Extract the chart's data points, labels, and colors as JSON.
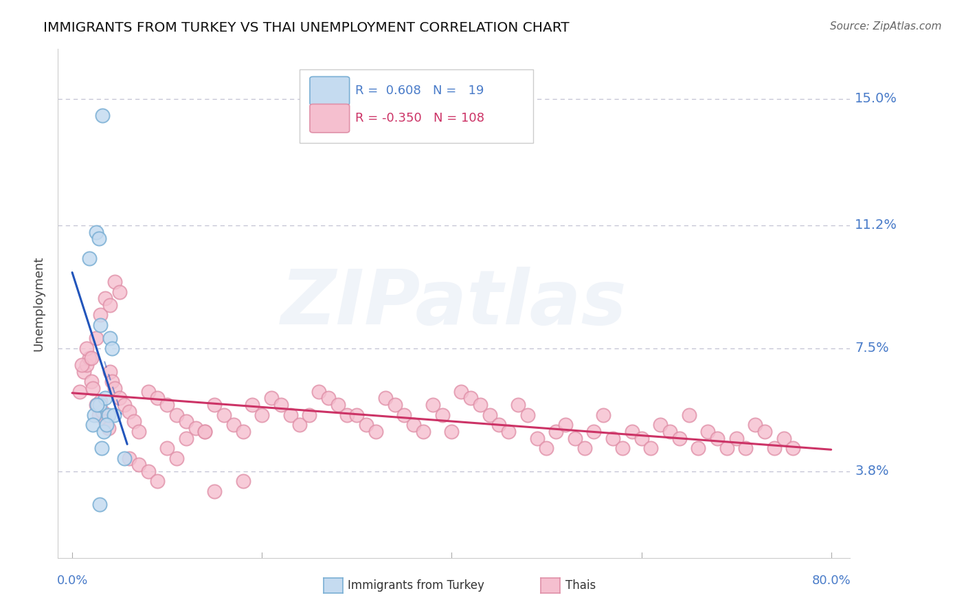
{
  "title": "IMMIGRANTS FROM TURKEY VS THAI UNEMPLOYMENT CORRELATION CHART",
  "source": "Source: ZipAtlas.com",
  "ylabel": "Unemployment",
  "yticks": [
    3.8,
    7.5,
    11.2,
    15.0
  ],
  "ytick_labels": [
    "3.8%",
    "7.5%",
    "11.2%",
    "15.0%"
  ],
  "xmin": 0.0,
  "xmax": 80.0,
  "ymin": 1.2,
  "ymax": 16.5,
  "blue_R": "0.608",
  "blue_N": 19,
  "pink_R": "-0.350",
  "pink_N": 108,
  "blue_fill": "#c5dbf0",
  "blue_edge": "#7aafd4",
  "pink_fill": "#f5bfcf",
  "pink_edge": "#e090a8",
  "blue_line_color": "#2255bb",
  "pink_line_color": "#cc3366",
  "legend_label_blue": "Immigrants from Turkey",
  "legend_label_pink": "Thais",
  "watermark": "ZIPatlas",
  "axis_color": "#4a7cc9",
  "grid_color": "#b8b8cc",
  "title_color": "#111111",
  "source_color": "#666666",
  "ylabel_color": "#444444",
  "blue_points_x": [
    3.2,
    1.8,
    2.5,
    2.8,
    3.0,
    4.0,
    4.2,
    2.3,
    2.9,
    3.5,
    3.8,
    2.2,
    3.3,
    2.6,
    4.4,
    3.6,
    3.1,
    5.5,
    2.9
  ],
  "blue_points_y": [
    14.5,
    10.2,
    11.0,
    10.8,
    8.2,
    7.8,
    7.5,
    5.5,
    5.8,
    6.0,
    5.5,
    5.2,
    5.0,
    5.8,
    5.5,
    5.2,
    4.5,
    4.2,
    2.8
  ],
  "pink_points_x": [
    0.8,
    1.2,
    1.5,
    1.8,
    2.0,
    2.2,
    2.5,
    2.8,
    3.0,
    3.2,
    3.5,
    3.8,
    4.0,
    4.2,
    4.5,
    5.0,
    5.5,
    6.0,
    6.5,
    7.0,
    8.0,
    9.0,
    10.0,
    11.0,
    12.0,
    13.0,
    14.0,
    15.0,
    16.0,
    17.0,
    18.0,
    19.0,
    20.0,
    21.0,
    22.0,
    23.0,
    24.0,
    25.0,
    26.0,
    27.0,
    28.0,
    29.0,
    30.0,
    31.0,
    32.0,
    33.0,
    34.0,
    35.0,
    36.0,
    37.0,
    38.0,
    39.0,
    40.0,
    41.0,
    42.0,
    43.0,
    44.0,
    45.0,
    46.0,
    47.0,
    48.0,
    49.0,
    50.0,
    51.0,
    52.0,
    53.0,
    54.0,
    55.0,
    56.0,
    57.0,
    58.0,
    59.0,
    60.0,
    61.0,
    62.0,
    63.0,
    64.0,
    65.0,
    66.0,
    67.0,
    68.0,
    69.0,
    70.0,
    71.0,
    72.0,
    73.0,
    74.0,
    75.0,
    76.0,
    1.0,
    1.5,
    2.0,
    2.5,
    3.0,
    3.5,
    4.0,
    4.5,
    5.0,
    6.0,
    7.0,
    8.0,
    9.0,
    10.0,
    11.0,
    12.0,
    14.0,
    15.0,
    18.0
  ],
  "pink_points_y": [
    6.2,
    6.8,
    7.0,
    7.2,
    6.5,
    6.3,
    5.8,
    5.5,
    5.9,
    5.6,
    5.3,
    5.1,
    6.8,
    6.5,
    6.3,
    6.0,
    5.8,
    5.6,
    5.3,
    5.0,
    6.2,
    6.0,
    5.8,
    5.5,
    5.3,
    5.1,
    5.0,
    5.8,
    5.5,
    5.2,
    5.0,
    5.8,
    5.5,
    6.0,
    5.8,
    5.5,
    5.2,
    5.5,
    6.2,
    6.0,
    5.8,
    5.5,
    5.5,
    5.2,
    5.0,
    6.0,
    5.8,
    5.5,
    5.2,
    5.0,
    5.8,
    5.5,
    5.0,
    6.2,
    6.0,
    5.8,
    5.5,
    5.2,
    5.0,
    5.8,
    5.5,
    4.8,
    4.5,
    5.0,
    5.2,
    4.8,
    4.5,
    5.0,
    5.5,
    4.8,
    4.5,
    5.0,
    4.8,
    4.5,
    5.2,
    5.0,
    4.8,
    5.5,
    4.5,
    5.0,
    4.8,
    4.5,
    4.8,
    4.5,
    5.2,
    5.0,
    4.5,
    4.8,
    4.5,
    7.0,
    7.5,
    7.2,
    7.8,
    8.5,
    9.0,
    8.8,
    9.5,
    9.2,
    4.2,
    4.0,
    3.8,
    3.5,
    4.5,
    4.2,
    4.8,
    5.0,
    3.2,
    3.5
  ]
}
